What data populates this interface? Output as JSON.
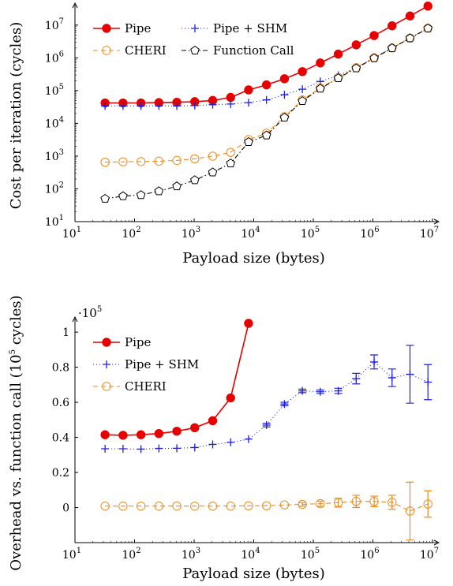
{
  "colors": {
    "pipe": "#e60000",
    "shm": "#1f1fe0",
    "cheri": "#f08a1c",
    "func": "#000000"
  },
  "chart_data": [
    {
      "type": "line",
      "xlabel": "Payload size (bytes)",
      "ylabel": "Cost per iteration (cycles)",
      "xscale": "log",
      "yscale": "log",
      "xlim": [
        10,
        10000000
      ],
      "ylim": [
        10,
        30000000
      ],
      "xticks": [
        10,
        100,
        1000,
        10000,
        100000,
        1000000,
        10000000
      ],
      "xtick_labels": [
        [
          "10",
          "1"
        ],
        [
          "10",
          "2"
        ],
        [
          "10",
          "3"
        ],
        [
          "10",
          "4"
        ],
        [
          "10",
          "5"
        ],
        [
          "10",
          "6"
        ],
        [
          "10",
          "7"
        ]
      ],
      "yticks": [
        10,
        100,
        1000,
        10000,
        100000,
        1000000,
        10000000
      ],
      "ytick_labels": [
        [
          "10",
          "1"
        ],
        [
          "10",
          "2"
        ],
        [
          "10",
          "3"
        ],
        [
          "10",
          "4"
        ],
        [
          "10",
          "5"
        ],
        [
          "10",
          "6"
        ],
        [
          "10",
          "7"
        ]
      ],
      "legend": "top-left",
      "x": [
        32,
        64,
        128,
        256,
        512,
        1024,
        2048,
        4096,
        8192,
        16384,
        32768,
        65536,
        131072,
        262144,
        524288,
        1048576,
        2097152,
        4194304,
        8388608
      ],
      "series": [
        {
          "name": "Pipe",
          "color_key": "pipe",
          "marker": "dot",
          "dash": "",
          "values": [
            42000,
            42000,
            42000,
            43000,
            44000,
            46000,
            50000,
            62000,
            105000,
            150000,
            230000,
            380000,
            700000,
            1300000,
            2500000,
            4800000,
            9500000,
            19000000,
            38000000
          ]
        },
        {
          "name": "Pipe + SHM",
          "color_key": "shm",
          "marker": "plus",
          "dash": "1 3",
          "values": [
            34000,
            34000,
            34000,
            34000,
            34000,
            35000,
            37000,
            39000,
            43000,
            52000,
            75000,
            110000,
            190000,
            290000,
            500000,
            1000000,
            2000000,
            4000000,
            8000000
          ]
        },
        {
          "name": "CHERI",
          "color_key": "cheri",
          "marker": "circle",
          "dash": "6 4",
          "values": [
            650,
            670,
            680,
            700,
            740,
            830,
            1000,
            1300,
            3200,
            5000,
            16000,
            52000,
            120000,
            250000,
            500000,
            1000000,
            2000000,
            4000000,
            8000000
          ]
        },
        {
          "name": "Function Call",
          "color_key": "func",
          "marker": "pentagon",
          "dash": "6 3 1.5 3",
          "values": [
            50,
            60,
            65,
            85,
            120,
            185,
            320,
            600,
            2700,
            4300,
            15000,
            48000,
            115000,
            240000,
            480000,
            980000,
            1980000,
            3980000,
            7950000
          ]
        }
      ]
    },
    {
      "type": "line",
      "xlabel": "Payload size (bytes)",
      "ylabel": "Overhead vs. function call (10",
      "ylabel_sup": "5",
      "ylabel_tail": " cycles)",
      "scale_label": "·10",
      "scale_sup": "5",
      "xscale": "log",
      "xlim": [
        10,
        10000000
      ],
      "ylim": [
        -0.2,
        1.05
      ],
      "xticks": [
        10,
        100,
        1000,
        10000,
        100000,
        1000000,
        10000000
      ],
      "xtick_labels": [
        [
          "10",
          "1"
        ],
        [
          "10",
          "2"
        ],
        [
          "10",
          "3"
        ],
        [
          "10",
          "4"
        ],
        [
          "10",
          "5"
        ],
        [
          "10",
          "6"
        ],
        [
          "10",
          "7"
        ]
      ],
      "yticks": [
        0,
        0.2,
        0.4,
        0.6,
        0.8,
        1
      ],
      "ytick_labels": [
        "0",
        "0.2",
        "0.4",
        "0.6",
        "0.8",
        "1"
      ],
      "legend": "top-left",
      "x": [
        32,
        64,
        128,
        256,
        512,
        1024,
        2048,
        4096,
        8192,
        16384,
        32768,
        65536,
        131072,
        262144,
        524288,
        1048576,
        2097152,
        4194304,
        8388608
      ],
      "series": [
        {
          "name": "Pipe",
          "color_key": "pipe",
          "marker": "dot",
          "dash": "",
          "values": [
            0.415,
            0.412,
            0.415,
            0.422,
            0.435,
            0.455,
            0.495,
            0.625,
            1.05,
            null,
            null,
            null,
            null,
            null,
            null,
            null,
            null,
            null,
            null
          ],
          "errors": []
        },
        {
          "name": "Pipe + SHM",
          "color_key": "shm",
          "marker": "plus",
          "dash": "1 3",
          "values": [
            0.335,
            0.335,
            0.333,
            0.337,
            0.338,
            0.342,
            0.36,
            0.372,
            0.39,
            0.47,
            0.59,
            0.665,
            0.66,
            0.665,
            0.735,
            0.83,
            0.74,
            0.76,
            0.715
          ],
          "errors": [
            0,
            0,
            0,
            0,
            0,
            0,
            0,
            0,
            0,
            0.01,
            0.01,
            0.01,
            0.01,
            0.015,
            0.03,
            0.04,
            0.05,
            0.165,
            0.1
          ]
        },
        {
          "name": "CHERI",
          "color_key": "cheri",
          "marker": "circle",
          "dash": "6 4",
          "values": [
            0.008,
            0.008,
            0.008,
            0.008,
            0.008,
            0.008,
            0.008,
            0.008,
            0.01,
            0.01,
            0.015,
            0.018,
            0.022,
            0.028,
            0.035,
            0.035,
            0.03,
            -0.02,
            0.02
          ],
          "errors": [
            0,
            0,
            0,
            0,
            0,
            0,
            0,
            0,
            0,
            0,
            0,
            0.01,
            0.015,
            0.025,
            0.035,
            0.03,
            0.04,
            0.165,
            0.075
          ]
        }
      ]
    }
  ]
}
